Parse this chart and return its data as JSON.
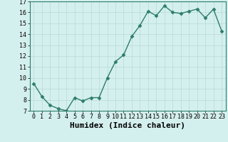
{
  "x": [
    0,
    1,
    2,
    3,
    4,
    5,
    6,
    7,
    8,
    9,
    10,
    11,
    12,
    13,
    14,
    15,
    16,
    17,
    18,
    19,
    20,
    21,
    22,
    23
  ],
  "y": [
    9.5,
    8.3,
    7.5,
    7.2,
    7.0,
    8.2,
    7.9,
    8.2,
    8.2,
    10.0,
    11.5,
    12.1,
    13.8,
    14.8,
    16.1,
    15.7,
    16.6,
    16.0,
    15.9,
    16.1,
    16.3,
    15.5,
    16.3,
    14.3
  ],
  "line_color": "#2e7d6e",
  "marker": "D",
  "markersize": 2.5,
  "linewidth": 1.0,
  "bg_color": "#d4f0ee",
  "grid_color": "#b8d8d4",
  "xlabel": "Humidex (Indice chaleur)",
  "xlabel_fontsize": 8,
  "tick_fontsize": 6,
  "ylim": [
    7,
    17
  ],
  "xlim": [
    -0.5,
    23.5
  ],
  "yticks": [
    7,
    8,
    9,
    10,
    11,
    12,
    13,
    14,
    15,
    16,
    17
  ],
  "xticks": [
    0,
    1,
    2,
    3,
    4,
    5,
    6,
    7,
    8,
    9,
    10,
    11,
    12,
    13,
    14,
    15,
    16,
    17,
    18,
    19,
    20,
    21,
    22,
    23
  ]
}
